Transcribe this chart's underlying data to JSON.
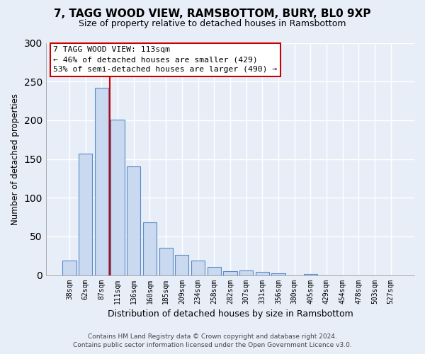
{
  "title": "7, TAGG WOOD VIEW, RAMSBOTTOM, BURY, BL0 9XP",
  "subtitle": "Size of property relative to detached houses in Ramsbottom",
  "xlabel": "Distribution of detached houses by size in Ramsbottom",
  "ylabel": "Number of detached properties",
  "bin_labels": [
    "38sqm",
    "62sqm",
    "87sqm",
    "111sqm",
    "136sqm",
    "160sqm",
    "185sqm",
    "209sqm",
    "234sqm",
    "258sqm",
    "282sqm",
    "307sqm",
    "331sqm",
    "356sqm",
    "380sqm",
    "405sqm",
    "429sqm",
    "454sqm",
    "478sqm",
    "503sqm",
    "527sqm"
  ],
  "bar_values": [
    19,
    157,
    242,
    201,
    140,
    68,
    35,
    26,
    19,
    11,
    5,
    6,
    4,
    2,
    0,
    1,
    0,
    0,
    0,
    0,
    0
  ],
  "bar_color": "#c8d9f0",
  "bar_edge_color": "#5a8ac6",
  "vline_color": "#cc0000",
  "ylim": [
    0,
    300
  ],
  "yticks": [
    0,
    50,
    100,
    150,
    200,
    250,
    300
  ],
  "annotation_title": "7 TAGG WOOD VIEW: 113sqm",
  "annotation_line1": "← 46% of detached houses are smaller (429)",
  "annotation_line2": "53% of semi-detached houses are larger (490) →",
  "annotation_box_edge": "#cc0000",
  "footer_line1": "Contains HM Land Registry data © Crown copyright and database right 2024.",
  "footer_line2": "Contains public sector information licensed under the Open Government Licence v3.0.",
  "bg_color": "#e8eef8",
  "plot_bg_color": "#e8eef8"
}
